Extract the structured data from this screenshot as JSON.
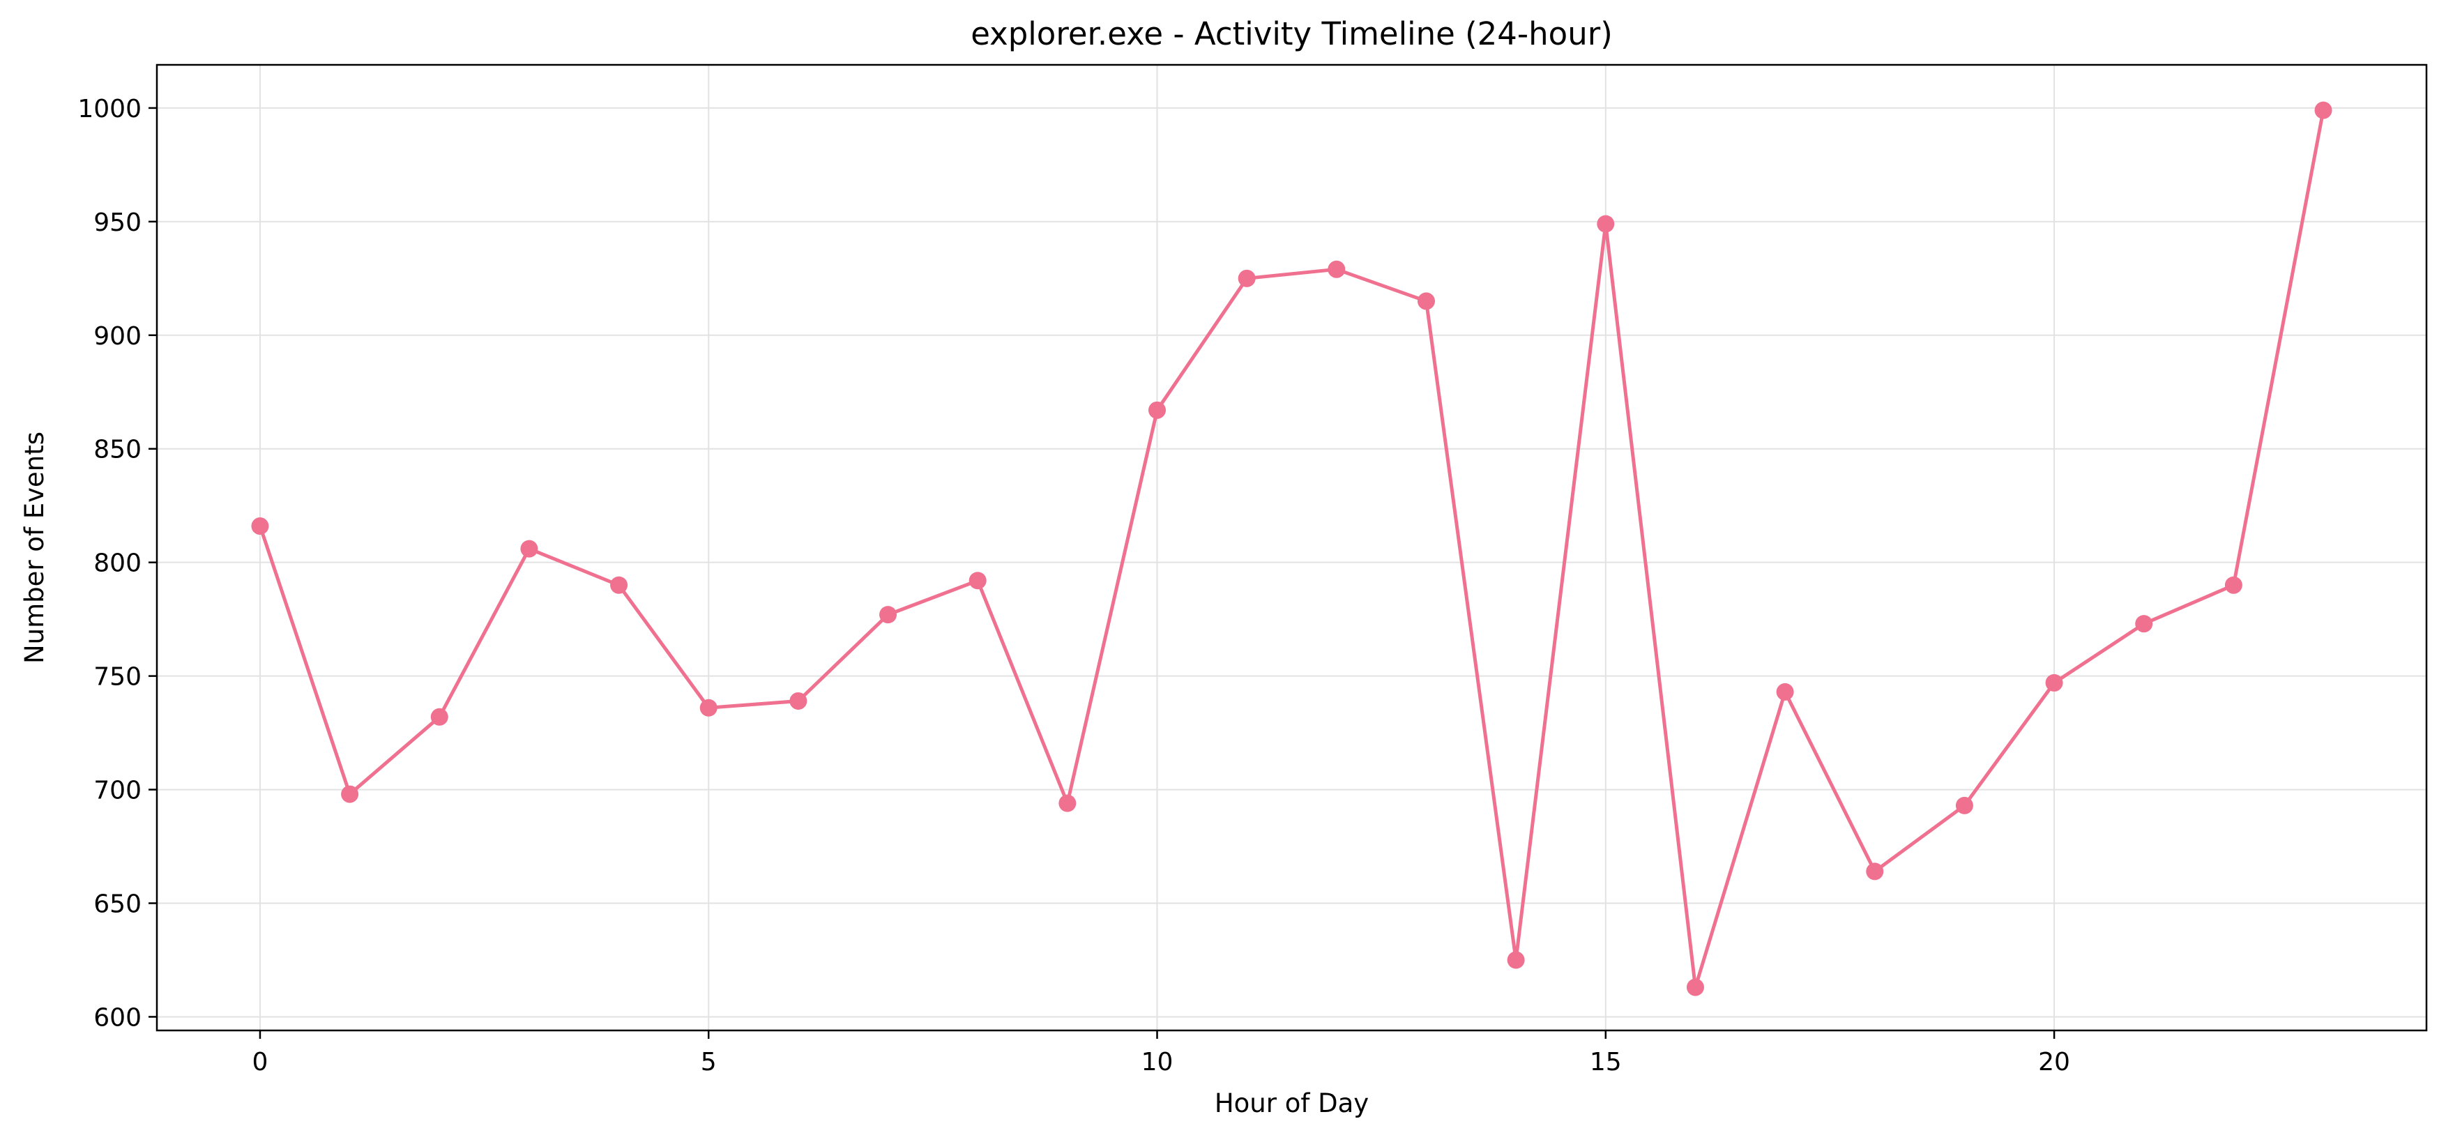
{
  "chart_data": {
    "type": "line",
    "title": "explorer.exe - Activity Timeline (24-hour)",
    "xlabel": "Hour of Day",
    "ylabel": "Number of Events",
    "xlim": [
      -1.15,
      24.15
    ],
    "ylim": [
      594,
      1019
    ],
    "x_ticks": [
      0,
      5,
      10,
      15,
      20
    ],
    "y_ticks": [
      600,
      650,
      700,
      750,
      800,
      850,
      900,
      950,
      1000
    ],
    "grid": true,
    "line_color": "#f07090",
    "series": [
      {
        "x": [
          0,
          1,
          2,
          3,
          4,
          5,
          6,
          7,
          8,
          9,
          10,
          11,
          12,
          13,
          14,
          15,
          16,
          17,
          18,
          19,
          20,
          21,
          22,
          23
        ],
        "values": [
          816,
          698,
          732,
          806,
          790,
          736,
          739,
          777,
          792,
          694,
          867,
          925,
          929,
          915,
          625,
          949,
          613,
          743,
          664,
          693,
          747,
          773,
          790,
          999
        ]
      }
    ]
  }
}
